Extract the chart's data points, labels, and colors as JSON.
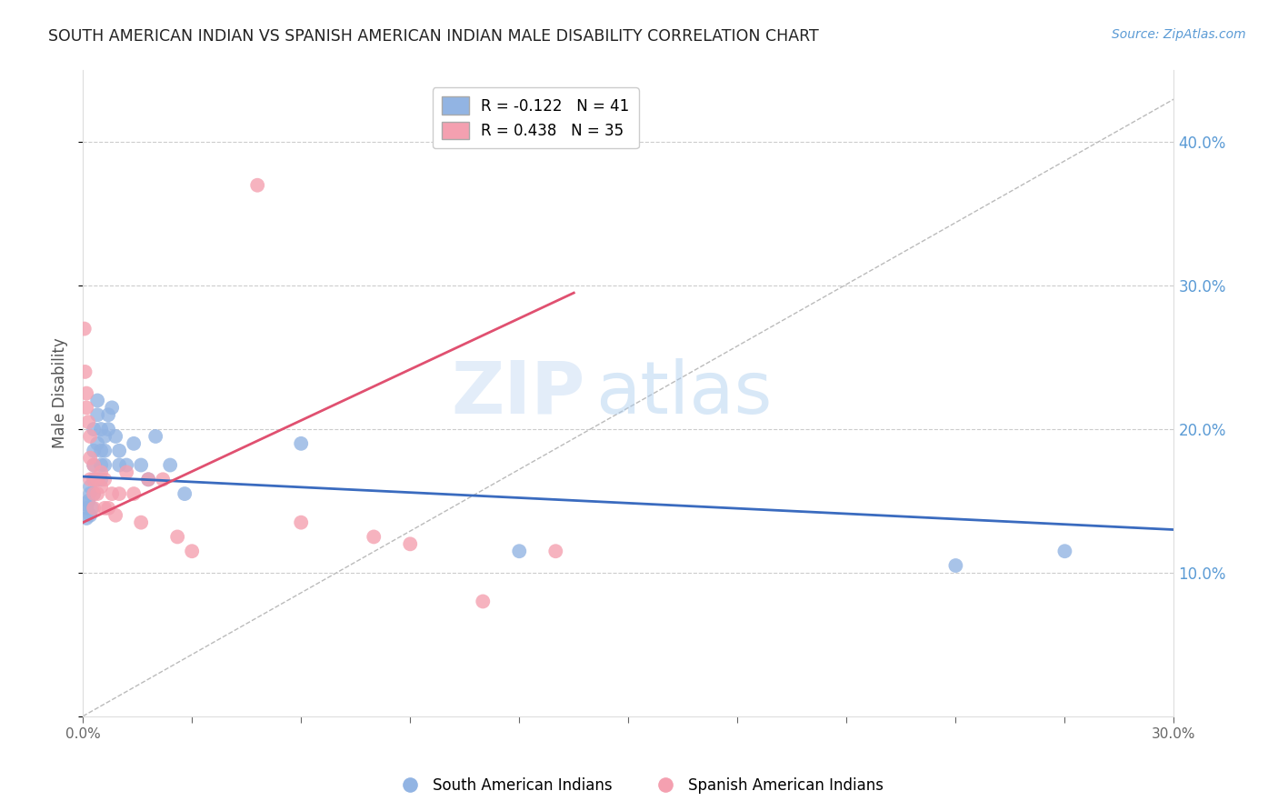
{
  "title": "SOUTH AMERICAN INDIAN VS SPANISH AMERICAN INDIAN MALE DISABILITY CORRELATION CHART",
  "source": "Source: ZipAtlas.com",
  "ylabel": "Male Disability",
  "legend_blue_label": "South American Indians",
  "legend_pink_label": "Spanish American Indians",
  "R_blue": -0.122,
  "N_blue": 41,
  "R_pink": 0.438,
  "N_pink": 35,
  "blue_color": "#92b4e3",
  "pink_color": "#f4a0b0",
  "blue_line_color": "#3a6bbf",
  "pink_line_color": "#e05070",
  "watermark_zip": "ZIP",
  "watermark_atlas": "atlas",
  "xlim": [
    0.0,
    0.3
  ],
  "ylim": [
    0.0,
    0.45
  ],
  "blue_scatter_x": [
    0.0005,
    0.001,
    0.001,
    0.0015,
    0.002,
    0.002,
    0.002,
    0.0025,
    0.003,
    0.003,
    0.003,
    0.003,
    0.003,
    0.004,
    0.004,
    0.004,
    0.004,
    0.005,
    0.005,
    0.005,
    0.005,
    0.006,
    0.006,
    0.006,
    0.007,
    0.007,
    0.008,
    0.009,
    0.01,
    0.01,
    0.012,
    0.014,
    0.016,
    0.018,
    0.02,
    0.024,
    0.028,
    0.06,
    0.12,
    0.24,
    0.27
  ],
  "blue_scatter_y": [
    0.148,
    0.145,
    0.138,
    0.15,
    0.155,
    0.14,
    0.16,
    0.145,
    0.155,
    0.165,
    0.175,
    0.185,
    0.2,
    0.165,
    0.19,
    0.21,
    0.22,
    0.175,
    0.185,
    0.165,
    0.2,
    0.185,
    0.195,
    0.175,
    0.2,
    0.21,
    0.215,
    0.195,
    0.185,
    0.175,
    0.175,
    0.19,
    0.175,
    0.165,
    0.195,
    0.175,
    0.155,
    0.19,
    0.115,
    0.105,
    0.115
  ],
  "pink_scatter_x": [
    0.0004,
    0.0006,
    0.001,
    0.001,
    0.0015,
    0.002,
    0.002,
    0.002,
    0.003,
    0.003,
    0.003,
    0.003,
    0.004,
    0.004,
    0.005,
    0.005,
    0.006,
    0.006,
    0.007,
    0.008,
    0.009,
    0.01,
    0.012,
    0.014,
    0.016,
    0.018,
    0.022,
    0.026,
    0.03,
    0.048,
    0.06,
    0.08,
    0.09,
    0.11,
    0.13
  ],
  "pink_scatter_y": [
    0.27,
    0.24,
    0.225,
    0.215,
    0.205,
    0.195,
    0.18,
    0.165,
    0.175,
    0.165,
    0.155,
    0.145,
    0.165,
    0.155,
    0.17,
    0.16,
    0.165,
    0.145,
    0.145,
    0.155,
    0.14,
    0.155,
    0.17,
    0.155,
    0.135,
    0.165,
    0.165,
    0.125,
    0.115,
    0.37,
    0.135,
    0.125,
    0.12,
    0.08,
    0.115
  ]
}
